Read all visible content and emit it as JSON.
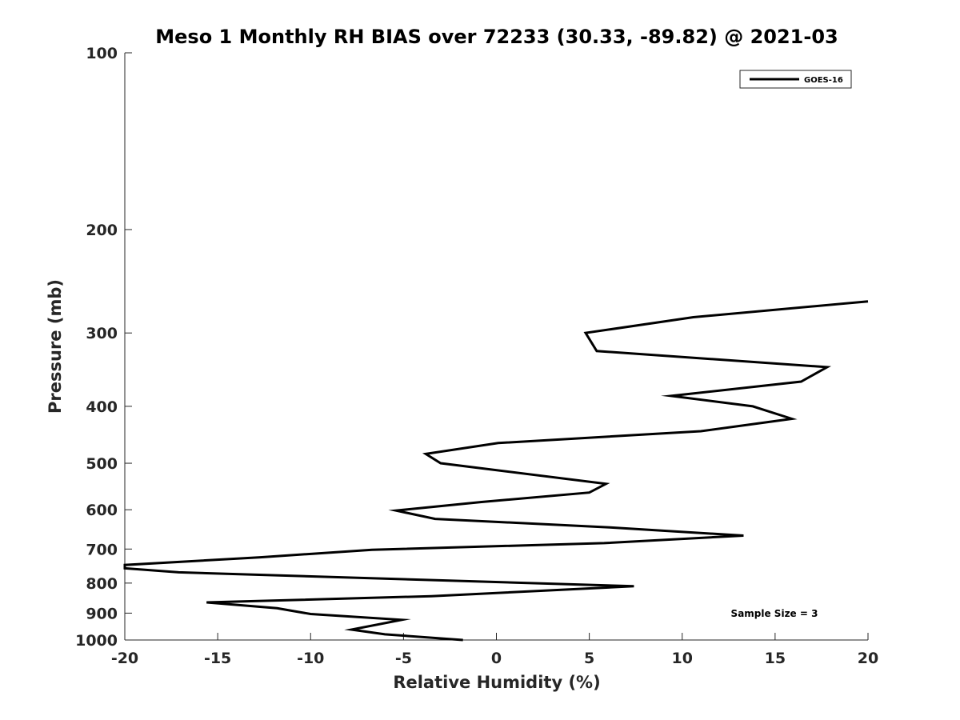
{
  "chart_data": {
    "type": "line",
    "title": "Meso 1 Monthly RH BIAS over 72233 (30.33, -89.82) @ 2021-03",
    "xlabel": "Relative Humidity (%)",
    "ylabel": "Pressure (mb)",
    "xlim": [
      -20,
      20
    ],
    "ylim": [
      100,
      1000
    ],
    "y_scale": "log",
    "y_reversed": true,
    "x_ticks": [
      -20,
      -15,
      -10,
      -5,
      0,
      5,
      10,
      15,
      20
    ],
    "x_tick_labels": [
      "-20",
      "-15",
      "-10",
      "-5",
      "0",
      "5",
      "10",
      "15",
      "20"
    ],
    "y_ticks": [
      100,
      200,
      300,
      400,
      500,
      600,
      700,
      800,
      900,
      1000
    ],
    "y_tick_labels": [
      "100",
      "200",
      "300",
      "400",
      "500",
      "600",
      "700",
      "800",
      "900",
      "1000"
    ],
    "grid": false,
    "legend_position": "top-right",
    "series": [
      {
        "name": "GOES-16",
        "color": "#000000",
        "points": [
          {
            "x": 20.0,
            "y": 265
          },
          {
            "x": 10.6,
            "y": 282
          },
          {
            "x": 4.8,
            "y": 300
          },
          {
            "x": 5.4,
            "y": 322
          },
          {
            "x": 17.8,
            "y": 343
          },
          {
            "x": 16.4,
            "y": 363
          },
          {
            "x": 9.4,
            "y": 384
          },
          {
            "x": 13.8,
            "y": 400
          },
          {
            "x": 15.9,
            "y": 420
          },
          {
            "x": 11.0,
            "y": 441
          },
          {
            "x": 0.1,
            "y": 462
          },
          {
            "x": -3.8,
            "y": 482
          },
          {
            "x": -3.0,
            "y": 500
          },
          {
            "x": 5.9,
            "y": 542
          },
          {
            "x": 5.0,
            "y": 561
          },
          {
            "x": -0.8,
            "y": 582
          },
          {
            "x": -5.4,
            "y": 602
          },
          {
            "x": -3.3,
            "y": 622
          },
          {
            "x": 6.1,
            "y": 643
          },
          {
            "x": 13.3,
            "y": 664
          },
          {
            "x": 5.8,
            "y": 684
          },
          {
            "x": -6.7,
            "y": 702
          },
          {
            "x": -9.9,
            "y": 713
          },
          {
            "x": -12.7,
            "y": 723
          },
          {
            "x": -20.0,
            "y": 745
          },
          {
            "x": -20.0,
            "y": 755
          },
          {
            "x": -17.1,
            "y": 767
          },
          {
            "x": 7.4,
            "y": 810
          },
          {
            "x": -3.5,
            "y": 842
          },
          {
            "x": -15.6,
            "y": 863
          },
          {
            "x": -11.8,
            "y": 883
          },
          {
            "x": -10.0,
            "y": 903
          },
          {
            "x": -5.1,
            "y": 924
          },
          {
            "x": -7.8,
            "y": 960
          },
          {
            "x": -6.0,
            "y": 978
          },
          {
            "x": -1.8,
            "y": 1000
          }
        ]
      }
    ],
    "annotations": [
      {
        "text": "Sample Size = 3",
        "position": "bottom-right"
      }
    ]
  }
}
